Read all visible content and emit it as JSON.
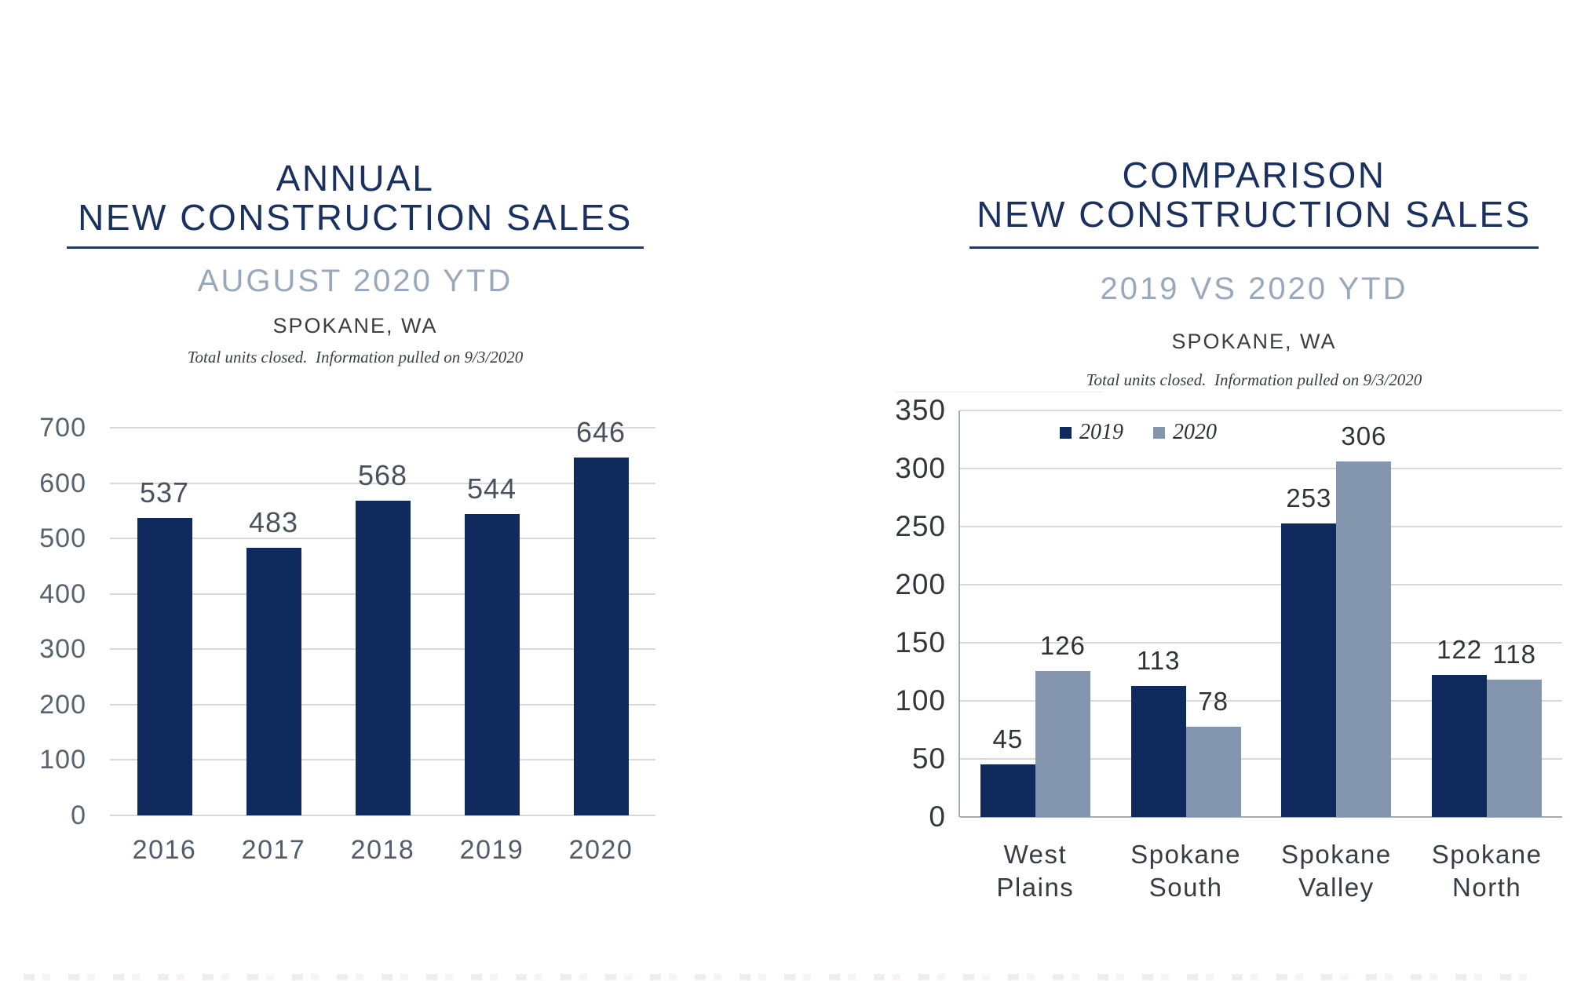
{
  "colors": {
    "navy": "#0f2a5c",
    "gray_blue": "#8496ad",
    "title_navy": "#1a3160",
    "underline_navy": "#233a66",
    "subtitle_gray": "#9aa8bc",
    "text_dark": "#3a3d42",
    "gridline_gray": "#d9d9d9",
    "axis_gray": "#a6abb2"
  },
  "left_header": {
    "title_line1": "ANNUAL",
    "title_line2": "NEW CONSTRUCTION SALES",
    "subtitle": "AUGUST 2020 YTD",
    "location": "SPOKANE, WA",
    "note": "Total units closed.  Information pulled on 9/3/2020"
  },
  "right_header": {
    "title_line1": "COMPARISON",
    "title_line2": "NEW CONSTRUCTION SALES",
    "subtitle": "2019 VS 2020 YTD",
    "location": "SPOKANE, WA",
    "note": "Total units closed.  Information pulled on 9/3/2020"
  },
  "chart_data": [
    {
      "id": "annual-new-construction-sales",
      "type": "bar",
      "title": "ANNUAL NEW CONSTRUCTION SALES",
      "subtitle": "AUGUST 2020 YTD",
      "location": "SPOKANE, WA",
      "note": "Total units closed.  Information pulled on 9/3/2020",
      "categories": [
        "2016",
        "2017",
        "2018",
        "2019",
        "2020"
      ],
      "values": [
        537,
        483,
        568,
        544,
        646
      ],
      "bar_color": "#0f2a5c",
      "xlabel": "",
      "ylabel": "",
      "ylim": [
        0,
        700
      ],
      "yticks": [
        0,
        100,
        200,
        300,
        400,
        500,
        600,
        700
      ],
      "grid": true,
      "data_labels": true,
      "legend_position": "none"
    },
    {
      "id": "comparison-new-construction-sales",
      "type": "bar",
      "title": "COMPARISON NEW CONSTRUCTION SALES",
      "subtitle": "2019 VS 2020 YTD",
      "location": "SPOKANE, WA",
      "note": "Total units closed.  Information pulled on 9/3/2020",
      "categories": [
        "West Plains",
        "Spokane\nSouth",
        "Spokane\nValley",
        "Spokane\nNorth"
      ],
      "series": [
        {
          "name": "2019",
          "color": "#0f2a5c",
          "values": [
            45,
            113,
            253,
            122
          ]
        },
        {
          "name": "2020",
          "color": "#8496ad",
          "values": [
            126,
            78,
            306,
            118
          ]
        }
      ],
      "xlabel": "",
      "ylabel": "",
      "ylim": [
        0,
        350
      ],
      "yticks": [
        0,
        50,
        100,
        150,
        200,
        250,
        300,
        350
      ],
      "grid": true,
      "data_labels": true,
      "legend_position": "top-center"
    }
  ]
}
